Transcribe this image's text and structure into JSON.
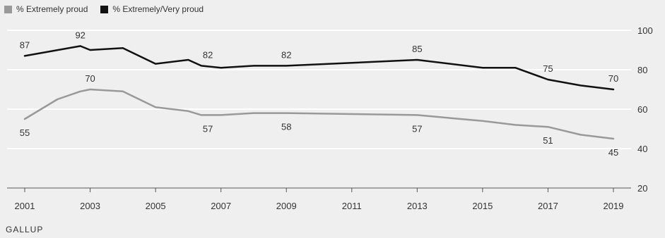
{
  "chart_data": {
    "type": "line",
    "title": "",
    "xlabel": "",
    "ylabel": "",
    "xlim": [
      2001,
      2019
    ],
    "ylim": [
      20,
      100
    ],
    "grid": true,
    "legend_position": "top-left",
    "y_axis_side": "right",
    "x_ticks": [
      2001,
      2003,
      2005,
      2007,
      2009,
      2011,
      2013,
      2015,
      2017,
      2019
    ],
    "y_ticks": [
      20,
      40,
      60,
      80,
      100
    ],
    "x_tick_labels": [
      "2001",
      "2003",
      "2005",
      "2007",
      "2009",
      "2011",
      "2013",
      "2015",
      "2017",
      "2019"
    ],
    "y_tick_labels": [
      "20",
      "40",
      "60",
      "80",
      "100"
    ],
    "series": [
      {
        "name": "% Extremely proud",
        "color": "#999999",
        "points": [
          {
            "x": 2001,
            "y": 55
          },
          {
            "x": 2002,
            "y": 65
          },
          {
            "x": 2002.7,
            "y": 69
          },
          {
            "x": 2003,
            "y": 70
          },
          {
            "x": 2004,
            "y": 69
          },
          {
            "x": 2005,
            "y": 61
          },
          {
            "x": 2006,
            "y": 59
          },
          {
            "x": 2006.4,
            "y": 57
          },
          {
            "x": 2007,
            "y": 57
          },
          {
            "x": 2008,
            "y": 58
          },
          {
            "x": 2009,
            "y": 58
          },
          {
            "x": 2013,
            "y": 57
          },
          {
            "x": 2015,
            "y": 54
          },
          {
            "x": 2016,
            "y": 52
          },
          {
            "x": 2017,
            "y": 51
          },
          {
            "x": 2018,
            "y": 47
          },
          {
            "x": 2019,
            "y": 45
          }
        ],
        "labels": [
          {
            "x": 2001,
            "y": 55,
            "text": "55",
            "pos": "below"
          },
          {
            "x": 2003,
            "y": 70,
            "text": "70",
            "pos": "above"
          },
          {
            "x": 2006.6,
            "y": 57,
            "text": "57",
            "pos": "below"
          },
          {
            "x": 2009,
            "y": 58,
            "text": "58",
            "pos": "below"
          },
          {
            "x": 2013,
            "y": 57,
            "text": "57",
            "pos": "below"
          },
          {
            "x": 2017,
            "y": 51,
            "text": "51",
            "pos": "below"
          },
          {
            "x": 2019,
            "y": 45,
            "text": "45",
            "pos": "below"
          }
        ]
      },
      {
        "name": "% Extremely/Very proud",
        "color": "#111111",
        "points": [
          {
            "x": 2001,
            "y": 87
          },
          {
            "x": 2002.7,
            "y": 92
          },
          {
            "x": 2003,
            "y": 90
          },
          {
            "x": 2004,
            "y": 91
          },
          {
            "x": 2005,
            "y": 83
          },
          {
            "x": 2006,
            "y": 85
          },
          {
            "x": 2006.4,
            "y": 82
          },
          {
            "x": 2007,
            "y": 81
          },
          {
            "x": 2008,
            "y": 82
          },
          {
            "x": 2009,
            "y": 82
          },
          {
            "x": 2013,
            "y": 85
          },
          {
            "x": 2015,
            "y": 81
          },
          {
            "x": 2016,
            "y": 81
          },
          {
            "x": 2017,
            "y": 75
          },
          {
            "x": 2018,
            "y": 72
          },
          {
            "x": 2019,
            "y": 70
          }
        ],
        "labels": [
          {
            "x": 2001,
            "y": 87,
            "text": "87",
            "pos": "above"
          },
          {
            "x": 2002.7,
            "y": 92,
            "text": "92",
            "pos": "above"
          },
          {
            "x": 2006.6,
            "y": 82,
            "text": "82",
            "pos": "above"
          },
          {
            "x": 2009,
            "y": 82,
            "text": "82",
            "pos": "above"
          },
          {
            "x": 2013,
            "y": 85,
            "text": "85",
            "pos": "above"
          },
          {
            "x": 2017,
            "y": 75,
            "text": "75",
            "pos": "above"
          },
          {
            "x": 2019,
            "y": 70,
            "text": "70",
            "pos": "above"
          }
        ]
      }
    ]
  },
  "legend": {
    "items": [
      {
        "label": "% Extremely proud",
        "color": "#999999"
      },
      {
        "label": "% Extremely/Very proud",
        "color": "#111111"
      }
    ]
  },
  "source": "GALLUP",
  "colors": {
    "background": "#efefef",
    "grid": "#ffffff",
    "axis_line": "#555555",
    "text": "#333333"
  }
}
